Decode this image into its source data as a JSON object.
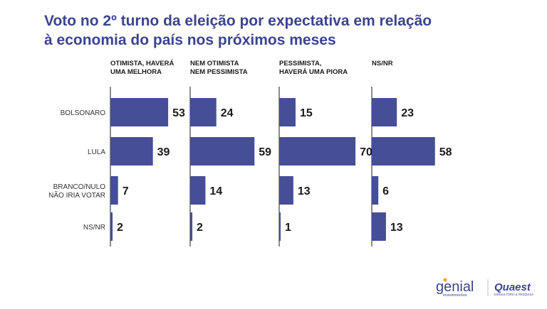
{
  "title_line1": "Voto no 2º turno da eleição por expectativa em relação",
  "title_line2": "à economia do país nos próximos meses",
  "colors": {
    "title": "#3b4490",
    "bar": "#454e96",
    "text": "#1a1a1a",
    "axis": "#1a1a1a",
    "accent_orange": "#f39c2b"
  },
  "chart_data": {
    "type": "bar",
    "orientation": "horizontal",
    "facets": [
      {
        "label_line1": "OTIMISTA, HAVERÁ",
        "label_line2": "UMA MELHORA"
      },
      {
        "label_line1": "NEM OTIMISTA",
        "label_line2": "NEM PESSIMISTA"
      },
      {
        "label_line1": "PESSIMISTA,",
        "label_line2": "HAVERÁ UMA PIORA"
      },
      {
        "label_line1": "NS/NR",
        "label_line2": ""
      }
    ],
    "categories": [
      {
        "line1": "BOLSONARO",
        "line2": ""
      },
      {
        "line1": "LULA",
        "line2": ""
      },
      {
        "line1": "BRANCO/NULO",
        "line2": "NÃO IRIA VOTAR"
      },
      {
        "line1": "NS/NR",
        "line2": ""
      }
    ],
    "values": [
      [
        53,
        39,
        7,
        2
      ],
      [
        24,
        59,
        14,
        2
      ],
      [
        15,
        70,
        13,
        1
      ],
      [
        23,
        58,
        6,
        13
      ]
    ]
  },
  "logos": {
    "genial_name": "genial",
    "genial_sub": "investimentos",
    "quaest_name": "Quaest",
    "quaest_sub": "CONSULTORIA & PESQUISA"
  }
}
